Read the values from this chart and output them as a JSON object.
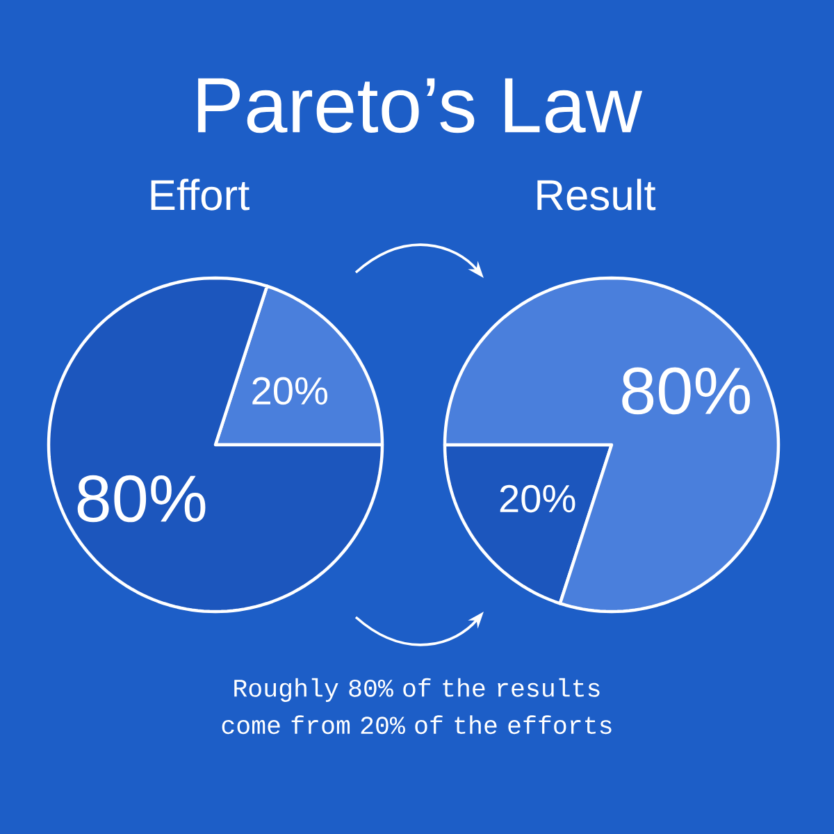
{
  "chart_data": [
    {
      "type": "other",
      "title": "Pareto’s Law",
      "annotations": [
        "Roughly 80% of the results come from 20% of the efforts"
      ]
    },
    {
      "type": "pie",
      "title": "Effort",
      "categories": [
        null,
        null
      ],
      "values": [
        20,
        80
      ],
      "colors": [
        "#4a7fdc",
        "#1c56bd"
      ],
      "value_labels": [
        "20%",
        "80%"
      ]
    },
    {
      "type": "pie",
      "title": "Result",
      "categories": [
        null,
        null
      ],
      "values": [
        20,
        80
      ],
      "colors": [
        "#1c56bd",
        "#4a7fdc"
      ],
      "value_labels": [
        "20%",
        "80%"
      ]
    }
  ]
}
